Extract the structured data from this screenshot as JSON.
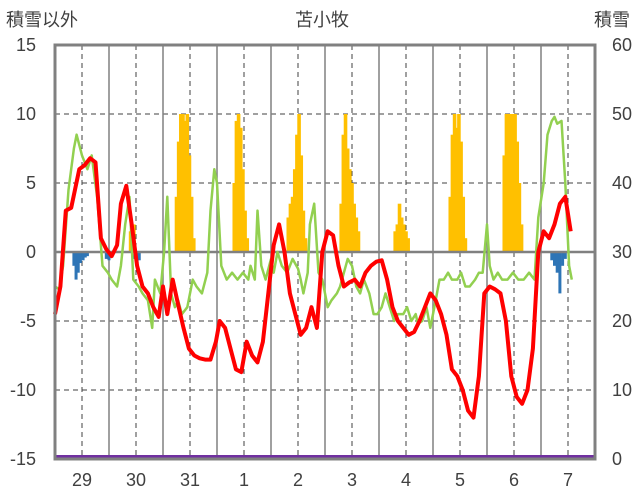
{
  "chart_data": {
    "type": "line",
    "title": "苫小牧",
    "left_axis_label": "積雪以外",
    "right_axis_label": "積雪",
    "ylim_left": [
      -15,
      15
    ],
    "yticks_left": [
      "15",
      "10",
      "5",
      "0",
      "-5",
      "-10",
      "-15"
    ],
    "ylim_right": [
      0,
      60
    ],
    "yticks_right": [
      "60",
      "50",
      "40",
      "30",
      "20",
      "10",
      "0"
    ],
    "xlim": [
      0,
      10
    ],
    "x_tick_labels": [
      "29",
      "30",
      "31",
      "1",
      "2",
      "3",
      "4",
      "5",
      "6",
      "7"
    ],
    "grid": "dashed",
    "colors": {
      "red_series": "#ff0000",
      "green_series": "#92d050",
      "snow_bars": "#ffc000",
      "negative_bars": "#2e75b6",
      "bottom_line": "#7030a0",
      "frame": "#808080"
    },
    "red_series": [
      [
        0.0,
        -4.5
      ],
      [
        0.1,
        -2.5
      ],
      [
        0.2,
        3.0
      ],
      [
        0.3,
        3.2
      ],
      [
        0.45,
        6.0
      ],
      [
        0.55,
        6.3
      ],
      [
        0.65,
        6.8
      ],
      [
        0.75,
        6.5
      ],
      [
        0.85,
        1.0
      ],
      [
        0.95,
        0.2
      ],
      [
        1.05,
        -0.3
      ],
      [
        1.15,
        0.5
      ],
      [
        1.22,
        3.5
      ],
      [
        1.32,
        4.8
      ],
      [
        1.42,
        2.0
      ],
      [
        1.52,
        -1.0
      ],
      [
        1.62,
        -2.5
      ],
      [
        1.72,
        -3.0
      ],
      [
        1.82,
        -4.0
      ],
      [
        1.92,
        -4.7
      ],
      [
        2.0,
        -2.5
      ],
      [
        2.08,
        -4.5
      ],
      [
        2.18,
        -2.0
      ],
      [
        2.28,
        -3.8
      ],
      [
        2.38,
        -5.5
      ],
      [
        2.48,
        -7.0
      ],
      [
        2.58,
        -7.5
      ],
      [
        2.68,
        -7.7
      ],
      [
        2.78,
        -7.8
      ],
      [
        2.88,
        -7.8
      ],
      [
        2.98,
        -6.5
      ],
      [
        3.05,
        -5.0
      ],
      [
        3.15,
        -5.5
      ],
      [
        3.25,
        -7.0
      ],
      [
        3.35,
        -8.5
      ],
      [
        3.45,
        -8.7
      ],
      [
        3.55,
        -6.5
      ],
      [
        3.65,
        -7.5
      ],
      [
        3.75,
        -8.0
      ],
      [
        3.85,
        -6.5
      ],
      [
        3.95,
        -3.0
      ],
      [
        4.05,
        0.5
      ],
      [
        4.15,
        2.0
      ],
      [
        4.25,
        0.0
      ],
      [
        4.35,
        -3.0
      ],
      [
        4.45,
        -4.5
      ],
      [
        4.55,
        -6.0
      ],
      [
        4.65,
        -5.5
      ],
      [
        4.75,
        -4.0
      ],
      [
        4.85,
        -5.5
      ],
      [
        4.95,
        0.0
      ],
      [
        5.05,
        1.5
      ],
      [
        5.15,
        1.2
      ],
      [
        5.25,
        -1.0
      ],
      [
        5.35,
        -2.5
      ],
      [
        5.45,
        -2.2
      ],
      [
        5.55,
        -2.0
      ],
      [
        5.65,
        -2.5
      ],
      [
        5.75,
        -1.5
      ],
      [
        5.85,
        -1.0
      ],
      [
        5.95,
        -0.7
      ],
      [
        6.05,
        -0.6
      ],
      [
        6.15,
        -2.0
      ],
      [
        6.25,
        -4.0
      ],
      [
        6.35,
        -5.0
      ],
      [
        6.45,
        -5.5
      ],
      [
        6.55,
        -6.0
      ],
      [
        6.65,
        -5.8
      ],
      [
        6.75,
        -5.0
      ],
      [
        6.85,
        -4.0
      ],
      [
        6.95,
        -3.0
      ],
      [
        7.05,
        -3.5
      ],
      [
        7.15,
        -4.5
      ],
      [
        7.25,
        -6.0
      ],
      [
        7.35,
        -8.5
      ],
      [
        7.45,
        -9.0
      ],
      [
        7.55,
        -10.0
      ],
      [
        7.65,
        -11.5
      ],
      [
        7.75,
        -12.0
      ],
      [
        7.85,
        -9.0
      ],
      [
        7.95,
        -3.0
      ],
      [
        8.05,
        -2.5
      ],
      [
        8.15,
        -2.7
      ],
      [
        8.25,
        -3.0
      ],
      [
        8.35,
        -5.0
      ],
      [
        8.45,
        -9.0
      ],
      [
        8.55,
        -10.5
      ],
      [
        8.65,
        -11.0
      ],
      [
        8.75,
        -10.0
      ],
      [
        8.85,
        -7.0
      ],
      [
        8.95,
        0.0
      ],
      [
        9.05,
        1.5
      ],
      [
        9.15,
        1.0
      ],
      [
        9.25,
        2.0
      ],
      [
        9.35,
        3.5
      ],
      [
        9.45,
        4.0
      ],
      [
        9.55,
        1.5
      ]
    ],
    "green_series": [
      [
        0.0,
        -2.5
      ],
      [
        0.08,
        -2.7
      ],
      [
        0.15,
        -1.0
      ],
      [
        0.25,
        4.5
      ],
      [
        0.35,
        7.5
      ],
      [
        0.4,
        8.5
      ],
      [
        0.5,
        7.0
      ],
      [
        0.6,
        6.0
      ],
      [
        0.68,
        7.0
      ],
      [
        0.78,
        4.0
      ],
      [
        0.88,
        -1.0
      ],
      [
        0.98,
        -1.5
      ],
      [
        1.05,
        -2.0
      ],
      [
        1.15,
        -2.5
      ],
      [
        1.22,
        -1.0
      ],
      [
        1.3,
        2.0
      ],
      [
        1.38,
        4.0
      ],
      [
        1.45,
        -2.0
      ],
      [
        1.55,
        -2.5
      ],
      [
        1.62,
        -3.0
      ],
      [
        1.72,
        -3.5
      ],
      [
        1.8,
        -5.5
      ],
      [
        1.85,
        -2.0
      ],
      [
        1.95,
        -3.0
      ],
      [
        2.02,
        0.0
      ],
      [
        2.08,
        4.0
      ],
      [
        2.15,
        -3.0
      ],
      [
        2.22,
        -4.0
      ],
      [
        2.28,
        -3.5
      ],
      [
        2.35,
        -4.5
      ],
      [
        2.45,
        -4.0
      ],
      [
        2.55,
        -2.0
      ],
      [
        2.62,
        -2.5
      ],
      [
        2.72,
        -3.0
      ],
      [
        2.82,
        -1.5
      ],
      [
        2.88,
        3.0
      ],
      [
        2.95,
        6.0
      ],
      [
        3.0,
        5.0
      ],
      [
        3.08,
        -1.0
      ],
      [
        3.18,
        -2.0
      ],
      [
        3.28,
        -1.5
      ],
      [
        3.38,
        -2.0
      ],
      [
        3.48,
        -1.5
      ],
      [
        3.58,
        -2.0
      ],
      [
        3.62,
        -1.0
      ],
      [
        3.7,
        -2.0
      ],
      [
        3.75,
        3.0
      ],
      [
        3.82,
        -1.0
      ],
      [
        3.9,
        -2.0
      ],
      [
        4.0,
        -0.5
      ],
      [
        4.05,
        -1.5
      ],
      [
        4.12,
        0.0
      ],
      [
        4.2,
        -1.0
      ],
      [
        4.3,
        -1.5
      ],
      [
        4.4,
        -0.5
      ],
      [
        4.5,
        -1.2
      ],
      [
        4.55,
        -2.0
      ],
      [
        4.6,
        -3.0
      ],
      [
        4.68,
        -1.5
      ],
      [
        4.72,
        2.0
      ],
      [
        4.8,
        3.5
      ],
      [
        4.88,
        -1.5
      ],
      [
        4.95,
        -2.0
      ],
      [
        5.0,
        -3.0
      ],
      [
        5.05,
        -4.0
      ],
      [
        5.12,
        -3.5
      ],
      [
        5.22,
        -3.0
      ],
      [
        5.28,
        -2.5
      ],
      [
        5.35,
        -1.5
      ],
      [
        5.42,
        -0.5
      ],
      [
        5.5,
        -1.0
      ],
      [
        5.58,
        -2.5
      ],
      [
        5.65,
        -3.0
      ],
      [
        5.72,
        -2.0
      ],
      [
        5.82,
        -3.0
      ],
      [
        5.9,
        -4.5
      ],
      [
        5.97,
        -4.5
      ],
      [
        6.05,
        -4.0
      ],
      [
        6.12,
        -3.0
      ],
      [
        6.2,
        -4.0
      ],
      [
        6.28,
        -5.0
      ],
      [
        6.35,
        -4.5
      ],
      [
        6.45,
        -4.5
      ],
      [
        6.52,
        -4.0
      ],
      [
        6.6,
        -5.0
      ],
      [
        6.68,
        -4.5
      ],
      [
        6.72,
        -5.2
      ],
      [
        6.8,
        -5.0
      ],
      [
        6.88,
        -4.0
      ],
      [
        6.95,
        -5.5
      ],
      [
        7.05,
        -3.5
      ],
      [
        7.12,
        -2.0
      ],
      [
        7.2,
        -2.0
      ],
      [
        7.28,
        -1.5
      ],
      [
        7.35,
        -2.0
      ],
      [
        7.45,
        -2.0
      ],
      [
        7.52,
        -1.5
      ],
      [
        7.6,
        -2.5
      ],
      [
        7.68,
        -2.5
      ],
      [
        7.78,
        -2.0
      ],
      [
        7.85,
        -1.5
      ],
      [
        7.92,
        -1.5
      ],
      [
        8.0,
        2.0
      ],
      [
        8.05,
        -1.0
      ],
      [
        8.12,
        -2.0
      ],
      [
        8.2,
        -1.5
      ],
      [
        8.28,
        -2.0
      ],
      [
        8.38,
        -2.0
      ],
      [
        8.48,
        -1.5
      ],
      [
        8.58,
        -2.0
      ],
      [
        8.68,
        -2.0
      ],
      [
        8.78,
        -1.5
      ],
      [
        8.88,
        -2.0
      ],
      [
        8.95,
        2.5
      ],
      [
        9.05,
        5.0
      ],
      [
        9.12,
        8.5
      ],
      [
        9.2,
        9.5
      ],
      [
        9.25,
        9.8
      ],
      [
        9.3,
        9.3
      ],
      [
        9.38,
        9.5
      ],
      [
        9.45,
        5.0
      ],
      [
        9.52,
        -1.0
      ],
      [
        9.57,
        -2.0
      ]
    ],
    "snow_bars": [
      [
        1.4,
        33
      ],
      [
        1.46,
        34
      ],
      [
        2.25,
        38
      ],
      [
        2.29,
        46
      ],
      [
        2.33,
        50
      ],
      [
        2.37,
        50
      ],
      [
        2.41,
        49
      ],
      [
        2.45,
        50
      ],
      [
        2.49,
        44
      ],
      [
        2.53,
        38
      ],
      [
        2.57,
        32
      ],
      [
        3.32,
        40
      ],
      [
        3.36,
        49
      ],
      [
        3.4,
        50
      ],
      [
        3.44,
        48
      ],
      [
        3.48,
        42
      ],
      [
        3.52,
        36
      ],
      [
        3.56,
        32
      ],
      [
        4.32,
        35
      ],
      [
        4.36,
        37
      ],
      [
        4.4,
        38
      ],
      [
        4.44,
        42
      ],
      [
        4.48,
        47
      ],
      [
        4.52,
        50
      ],
      [
        4.56,
        44
      ],
      [
        4.6,
        36
      ],
      [
        4.64,
        32
      ],
      [
        5.3,
        37
      ],
      [
        5.34,
        47
      ],
      [
        5.38,
        50
      ],
      [
        5.42,
        45
      ],
      [
        5.46,
        42
      ],
      [
        5.5,
        40
      ],
      [
        5.54,
        37
      ],
      [
        5.58,
        35
      ],
      [
        5.62,
        33
      ],
      [
        6.3,
        33
      ],
      [
        6.34,
        34
      ],
      [
        6.38,
        37
      ],
      [
        6.42,
        35
      ],
      [
        6.46,
        34
      ],
      [
        6.5,
        33
      ],
      [
        6.54,
        32
      ],
      [
        7.32,
        38
      ],
      [
        7.36,
        47
      ],
      [
        7.4,
        50
      ],
      [
        7.44,
        48
      ],
      [
        7.48,
        50
      ],
      [
        7.52,
        46
      ],
      [
        7.56,
        38
      ],
      [
        7.6,
        32
      ],
      [
        8.32,
        44
      ],
      [
        8.36,
        50
      ],
      [
        8.4,
        50
      ],
      [
        8.44,
        50
      ],
      [
        8.48,
        50
      ],
      [
        8.52,
        50
      ],
      [
        8.56,
        46
      ],
      [
        8.6,
        40
      ],
      [
        8.64,
        34
      ]
    ],
    "negative_bars": [
      [
        0.35,
        -1.0
      ],
      [
        0.39,
        -2.0
      ],
      [
        0.43,
        -1.5
      ],
      [
        0.47,
        -0.8
      ],
      [
        0.52,
        -0.6
      ],
      [
        0.56,
        -0.4
      ],
      [
        0.6,
        -0.3
      ],
      [
        0.95,
        -0.5
      ],
      [
        1.0,
        -0.6
      ],
      [
        1.05,
        -0.4
      ],
      [
        1.48,
        -0.5
      ],
      [
        1.52,
        -0.8
      ],
      [
        1.56,
        -0.6
      ],
      [
        9.2,
        -0.6
      ],
      [
        9.25,
        -1.0
      ],
      [
        9.3,
        -1.5
      ],
      [
        9.35,
        -3.0
      ],
      [
        9.4,
        -1.0
      ],
      [
        9.45,
        -0.5
      ]
    ]
  }
}
